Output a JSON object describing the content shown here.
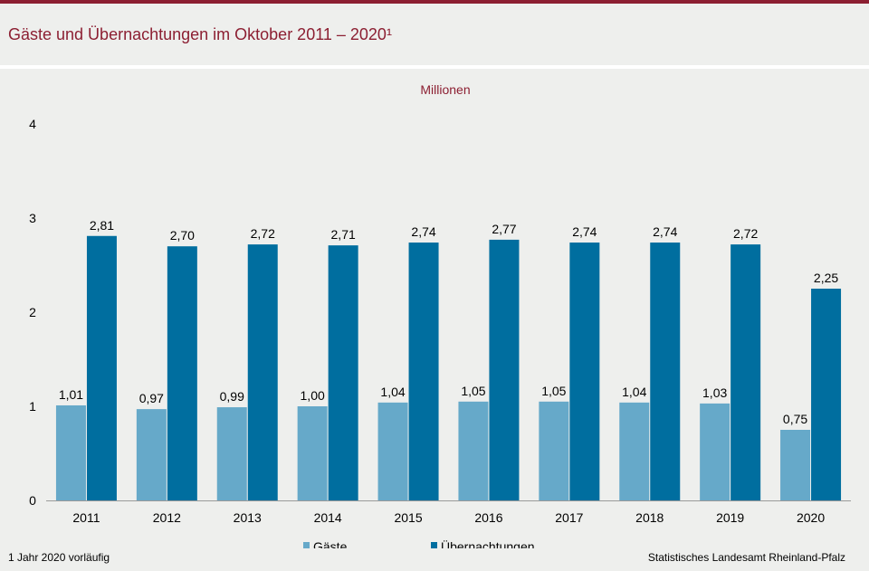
{
  "header": {
    "title": "Gäste und Übernachtungen im Oktober 2011 – 2020¹"
  },
  "footer": {
    "footnote": "1 Jahr 2020 vorläufig",
    "source": "Statistisches Landesamt Rheinland-Pfalz"
  },
  "colors": {
    "brand": "#8c1f32",
    "gaeste": "#66a9c9",
    "uebernachtungen": "#006e9f"
  },
  "chart_data": {
    "type": "bar",
    "unit": "Millionen",
    "categories": [
      "2011",
      "2012",
      "2013",
      "2014",
      "2015",
      "2016",
      "2017",
      "2018",
      "2019",
      "2020"
    ],
    "series": [
      {
        "name": "Gäste",
        "values": [
          1.01,
          0.97,
          0.99,
          1.0,
          1.04,
          1.05,
          1.05,
          1.04,
          1.03,
          0.75
        ],
        "labels": [
          "1,01",
          "0,97",
          "0,99",
          "1,00",
          "1,04",
          "1,05",
          "1,05",
          "1,04",
          "1,03",
          "0,75"
        ]
      },
      {
        "name": "Übernachtungen",
        "values": [
          2.81,
          2.7,
          2.72,
          2.71,
          2.74,
          2.77,
          2.74,
          2.74,
          2.72,
          2.25
        ],
        "labels": [
          "2,81",
          "2,70",
          "2,72",
          "2,71",
          "2,74",
          "2,77",
          "2,74",
          "2,74",
          "2,72",
          "2,25"
        ]
      }
    ],
    "yticks": [
      "0",
      "1",
      "2",
      "3",
      "4"
    ],
    "ylim": [
      0,
      4
    ],
    "grid": false,
    "legend_position": "bottom-center"
  }
}
